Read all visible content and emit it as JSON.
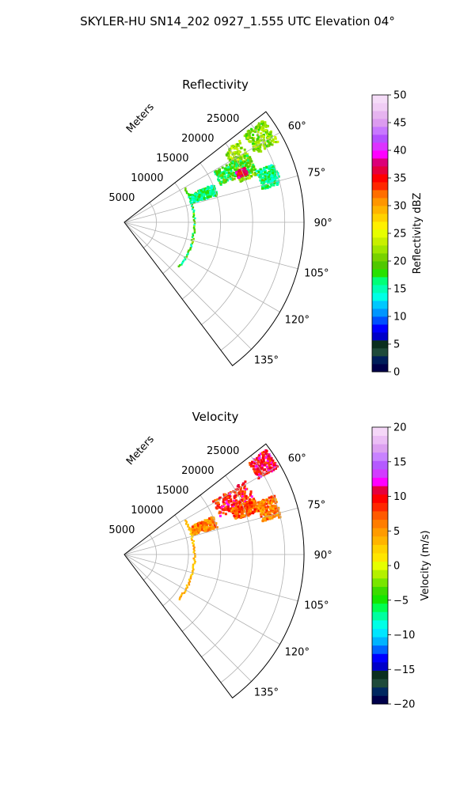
{
  "figure": {
    "title": "SKYLER-HU  SN14_202  0927_1.555 UTC Elevation 04°"
  },
  "chart_data": [
    {
      "type": "polar-sector",
      "title": "Reflectivity",
      "radial_axis_label": "Meters",
      "radial_ticks": [
        5000,
        10000,
        15000,
        20000,
        25000
      ],
      "rmax": 28000,
      "theta_range_deg": [
        52,
        143
      ],
      "angle_ticks": [
        "60°",
        "75°",
        "90°",
        "105°",
        "120°",
        "135°"
      ],
      "angle_tick_values": [
        60,
        75,
        90,
        105,
        120,
        135
      ],
      "colorbar": {
        "label": "Reflectivity dBZ",
        "range": [
          0,
          50
        ],
        "ticks": [
          "0",
          "5",
          "10",
          "15",
          "20",
          "25",
          "30",
          "35",
          "40",
          "45",
          "50"
        ],
        "colors": [
          "#00004a",
          "#001e5a",
          "#1e4a3a",
          "#0a2e1e",
          "#0000c8",
          "#0000ff",
          "#0050ff",
          "#0096ff",
          "#00c8ff",
          "#00ffe6",
          "#00ffb4",
          "#00ff78",
          "#28e100",
          "#50c800",
          "#78d200",
          "#a0e600",
          "#c8f000",
          "#e6ff00",
          "#fff000",
          "#ffd200",
          "#ffb400",
          "#ff9600",
          "#ff6e00",
          "#ff2800",
          "#ff0000",
          "#e6003c",
          "#dc0078",
          "#ff00ff",
          "#dc32ff",
          "#b450ff",
          "#c878ff",
          "#dc9bf0",
          "#e6b4f0",
          "#f0cdf5",
          "#f5dcf8"
        ]
      },
      "echoes": [
        {
          "r_range": [
            19000,
            22000
          ],
          "theta_range": [
            54,
            70
          ],
          "value": 22
        },
        {
          "r_range": [
            23000,
            27000
          ],
          "theta_range": [
            53,
            62
          ],
          "value": 21
        },
        {
          "r_range": [
            16000,
            22000
          ],
          "theta_range": [
            60,
            68
          ],
          "value": 18
        },
        {
          "r_range": [
            11000,
            15000
          ],
          "theta_range": [
            66,
            73
          ],
          "value": 16
        },
        {
          "r_range": [
            22000,
            25000
          ],
          "theta_range": [
            68,
            76
          ],
          "value": 16
        },
        {
          "r_range": [
            19000,
            20500
          ],
          "theta_range": [
            65,
            68
          ],
          "value": 36
        }
      ]
    },
    {
      "type": "polar-sector",
      "title": "Velocity",
      "radial_axis_label": "Meters",
      "radial_ticks": [
        5000,
        10000,
        15000,
        20000,
        25000
      ],
      "rmax": 28000,
      "theta_range_deg": [
        52,
        143
      ],
      "angle_ticks": [
        "60°",
        "75°",
        "90°",
        "105°",
        "120°",
        "135°"
      ],
      "angle_tick_values": [
        60,
        75,
        90,
        105,
        120,
        135
      ],
      "colorbar": {
        "label": "Velocity (m/s)",
        "range": [
          -20,
          20
        ],
        "ticks": [
          "−20",
          "−15",
          "−10",
          "−5",
          "0",
          "5",
          "10",
          "15",
          "20"
        ],
        "colors": [
          "#00004a",
          "#002860",
          "#1e4a3a",
          "#0a2e1e",
          "#0000c8",
          "#0000ff",
          "#0064ff",
          "#00b4ff",
          "#00e6ff",
          "#00ffe6",
          "#00ffa0",
          "#00ff50",
          "#14e600",
          "#3cdc00",
          "#78e600",
          "#b4f000",
          "#e6ff00",
          "#ffe600",
          "#ffd200",
          "#ffb400",
          "#ff9b00",
          "#ff7d00",
          "#ff5a00",
          "#ff2800",
          "#ff0000",
          "#e6003c",
          "#ff00ff",
          "#d23cff",
          "#b45aff",
          "#c882ff",
          "#dca0f0",
          "#ebbef5",
          "#f5d7f8"
        ]
      },
      "echoes": [
        {
          "r_range": [
            24000,
            27500
          ],
          "theta_range": [
            53,
            60
          ],
          "value": 10
        },
        {
          "r_range": [
            16000,
            22000
          ],
          "theta_range": [
            58,
            68
          ],
          "value": 9
        },
        {
          "r_range": [
            18000,
            22000
          ],
          "theta_range": [
            66,
            72
          ],
          "value": 7
        },
        {
          "r_range": [
            11000,
            15000
          ],
          "theta_range": [
            66,
            73
          ],
          "value": 6
        },
        {
          "r_range": [
            22000,
            25000
          ],
          "theta_range": [
            68,
            76
          ],
          "value": 6
        }
      ]
    }
  ]
}
